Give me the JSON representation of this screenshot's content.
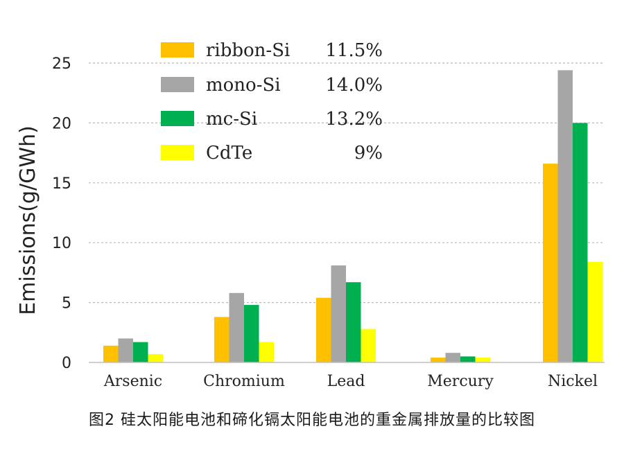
{
  "caption": "图2 硅太阳能电池和碲化镉太阳能电池的重金属排放量的比较图",
  "chart_data": {
    "type": "bar",
    "title": "",
    "xlabel": "",
    "ylabel": "Emissions(g/GWh)",
    "ylim": [
      0,
      25
    ],
    "yticks": [
      "0",
      "5",
      "10",
      "15",
      "20",
      "25"
    ],
    "grid": true,
    "legend_position": "top-left",
    "categories": [
      "Arsenic",
      "Chromium",
      "Lead",
      "Mercury",
      "Nickel"
    ],
    "series": [
      {
        "name": "ribbon-Si",
        "efficiency": "11.5%",
        "color": "#FFC000",
        "values": [
          1.4,
          3.8,
          5.4,
          0.4,
          16.6
        ]
      },
      {
        "name": "mono-Si",
        "efficiency": "14.0%",
        "color": "#A6A6A6",
        "values": [
          2.0,
          5.8,
          8.1,
          0.8,
          24.4
        ]
      },
      {
        "name": "mc-Si",
        "efficiency": "13.2%",
        "color": "#00B050",
        "values": [
          1.7,
          4.8,
          6.7,
          0.5,
          20.0
        ]
      },
      {
        "name": "CdTe",
        "efficiency": "9%",
        "color": "#FFFF00",
        "values": [
          0.7,
          1.7,
          2.8,
          0.4,
          8.4
        ]
      }
    ]
  }
}
